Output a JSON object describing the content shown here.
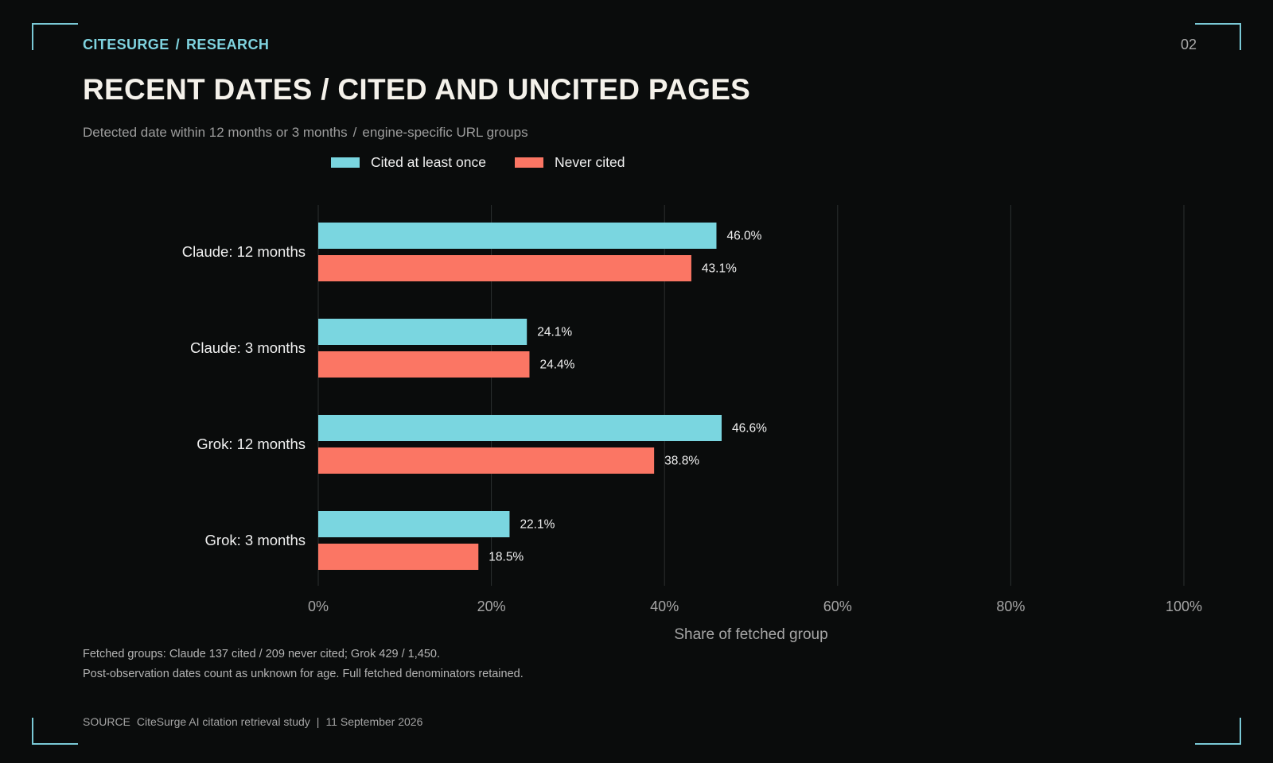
{
  "header": {
    "brand": "CITESURGE",
    "separator": "/",
    "section": "RESEARCH",
    "page_number": "02",
    "title": "RECENT DATES / CITED AND UNCITED PAGES",
    "subtitle_a": "Detected date within 12 months or 3 months",
    "subtitle_sep": "/",
    "subtitle_b": "engine-specific URL groups"
  },
  "colors": {
    "accent": "#7fd3df",
    "cited": "#7ad6e0",
    "never_cited": "#fb7664",
    "background": "#0a0c0c",
    "grid": "#2c3030"
  },
  "chart_data": {
    "type": "bar",
    "orientation": "horizontal",
    "categories": [
      "Claude: 12 months",
      "Claude: 3 months",
      "Grok: 12 months",
      "Grok: 3 months"
    ],
    "series": [
      {
        "name": "Cited at least once",
        "values": [
          46.0,
          24.1,
          46.6,
          22.1
        ],
        "labels": [
          "46.0%",
          "24.1%",
          "46.6%",
          "22.1%"
        ]
      },
      {
        "name": "Never cited",
        "values": [
          43.1,
          24.4,
          38.8,
          18.5
        ],
        "labels": [
          "43.1%",
          "24.4%",
          "38.8%",
          "18.5%"
        ]
      }
    ],
    "xlim": [
      0,
      100
    ],
    "xticks": [
      0,
      20,
      40,
      60,
      80,
      100
    ],
    "xtick_labels": [
      "0%",
      "20%",
      "40%",
      "60%",
      "80%",
      "100%"
    ],
    "xlabel": "Share of fetched group",
    "ylabel": "",
    "grid": "vertical",
    "legend_position": "top"
  },
  "notes": {
    "line1": "Fetched groups: Claude 137 cited / 209 never cited; Grok 429 / 1,450.",
    "line2": "Post-observation dates count as unknown for age. Full fetched denominators retained."
  },
  "source": {
    "label": "SOURCE",
    "text": "CiteSurge AI citation retrieval study",
    "separator": "|",
    "date": "11 September 2026"
  }
}
